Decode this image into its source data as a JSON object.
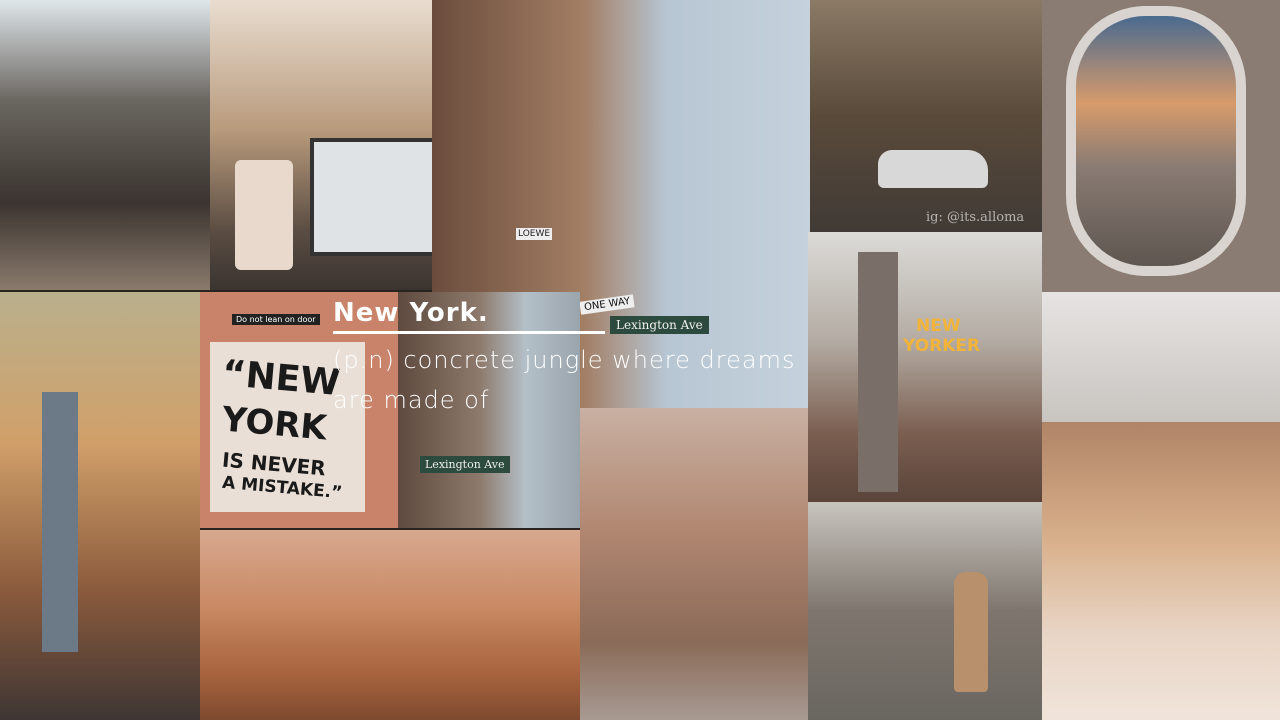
{
  "overlay": {
    "title": "New York.",
    "definition_line1": "(p.n) concrete jungle where dreams",
    "definition_line2": "are made of"
  },
  "signs": {
    "door_sign": "Do not lean on door",
    "poster_line1": "“NEW",
    "poster_line2": "YORK",
    "poster_line3": "IS NEVER",
    "poster_line4": "A MISTAKE.”",
    "street_sign_top": "Lexington Ave",
    "street_sign_bottom": "Lexington Ave",
    "one_way": "ONE WAY",
    "hotel_line1": "NEW",
    "hotel_line2": "YORKER",
    "shop": "LOEWE",
    "watermark": "ig: @its.alloma"
  }
}
